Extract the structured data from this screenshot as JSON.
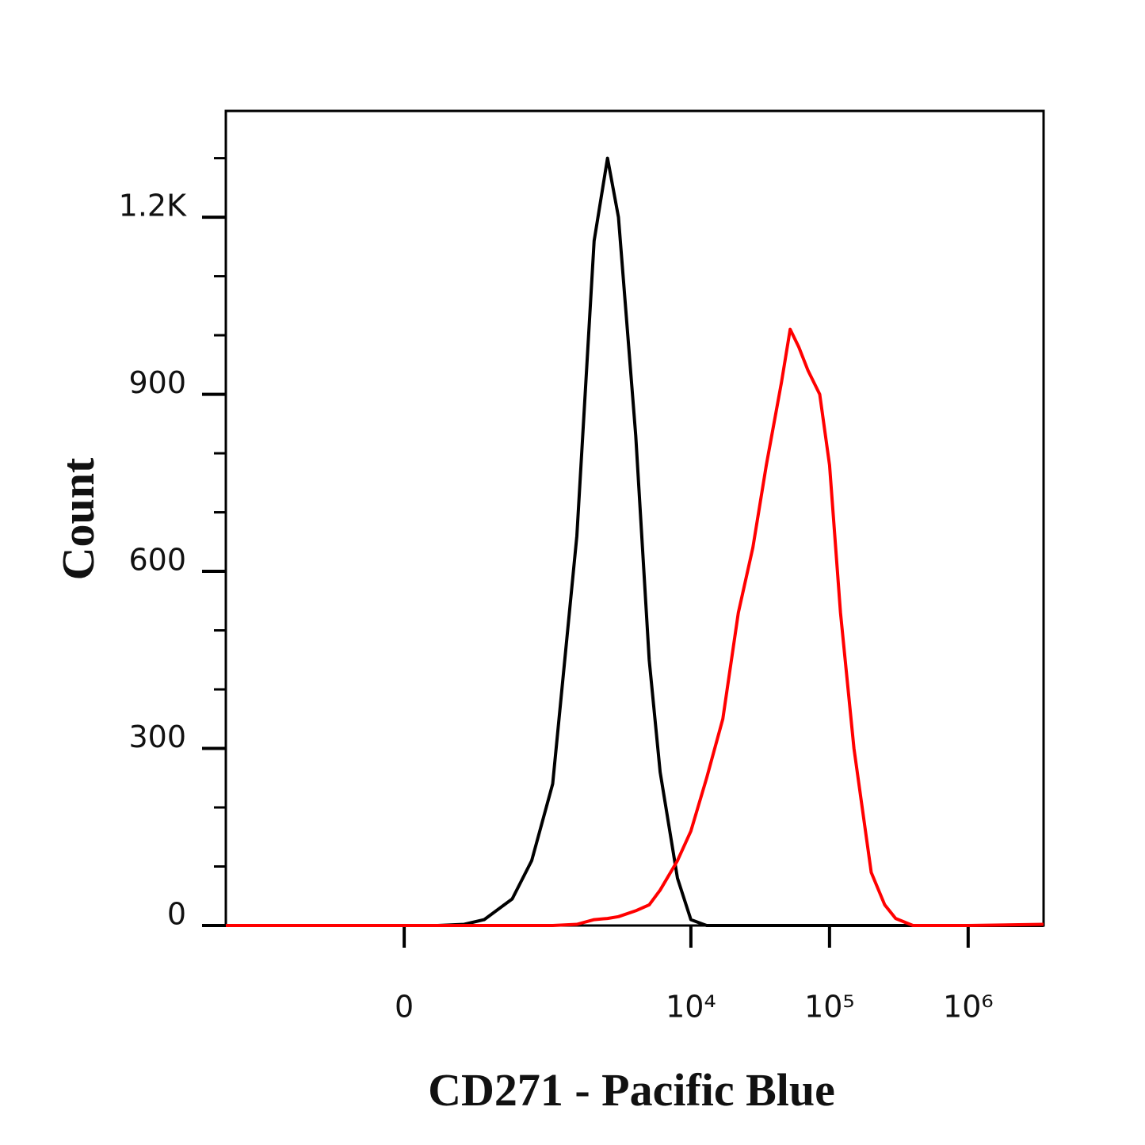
{
  "chart_data": {
    "type": "line",
    "xlabel": "CD271 - Pacific Blue",
    "ylabel": "Count",
    "xscale": "arcsinh",
    "xscale_cofactor": 171,
    "x": [
      -1650,
      0,
      100,
      200,
      300,
      500,
      700,
      1000,
      1500,
      2000,
      2500,
      3000,
      4000,
      5000,
      6000,
      8000,
      10000,
      13000,
      17000,
      22000,
      28000,
      35000,
      45000,
      52000,
      60000,
      70000,
      85000,
      100000,
      120000,
      150000,
      200000,
      250000,
      300000,
      400000,
      1000000,
      3500000
    ],
    "series": [
      {
        "color": "#000000",
        "values": [
          0,
          0,
          0,
          2,
          10,
          45,
          110,
          240,
          660,
          1160,
          1300,
          1200,
          830,
          450,
          260,
          80,
          10,
          0,
          0,
          0,
          0,
          0,
          0,
          0,
          0,
          0,
          0,
          0,
          0,
          0,
          0,
          0,
          0,
          0,
          0,
          0
        ]
      },
      {
        "color": "#ff0000",
        "values": [
          0,
          0,
          0,
          0,
          0,
          0,
          0,
          0,
          2,
          10,
          12,
          15,
          25,
          35,
          60,
          110,
          160,
          250,
          350,
          530,
          640,
          780,
          920,
          1010,
          980,
          940,
          900,
          780,
          530,
          300,
          90,
          35,
          12,
          0,
          0,
          2
        ]
      }
    ],
    "xlim": [
      -1650,
      3500000
    ],
    "xticks": [
      {
        "value": 0,
        "label": "0"
      },
      {
        "value": 10000,
        "label": "10⁴"
      },
      {
        "value": 100000,
        "label": "10⁵"
      },
      {
        "value": 1000000,
        "label": "10⁶"
      }
    ],
    "ylim": [
      0,
      1380
    ],
    "yticks": [
      0,
      300,
      600,
      900,
      {
        "value": 1200,
        "label": "1.2K"
      }
    ],
    "yminorticks": [
      100,
      200,
      400,
      500,
      700,
      800,
      1000,
      1100,
      1300
    ],
    "grid": false
  }
}
